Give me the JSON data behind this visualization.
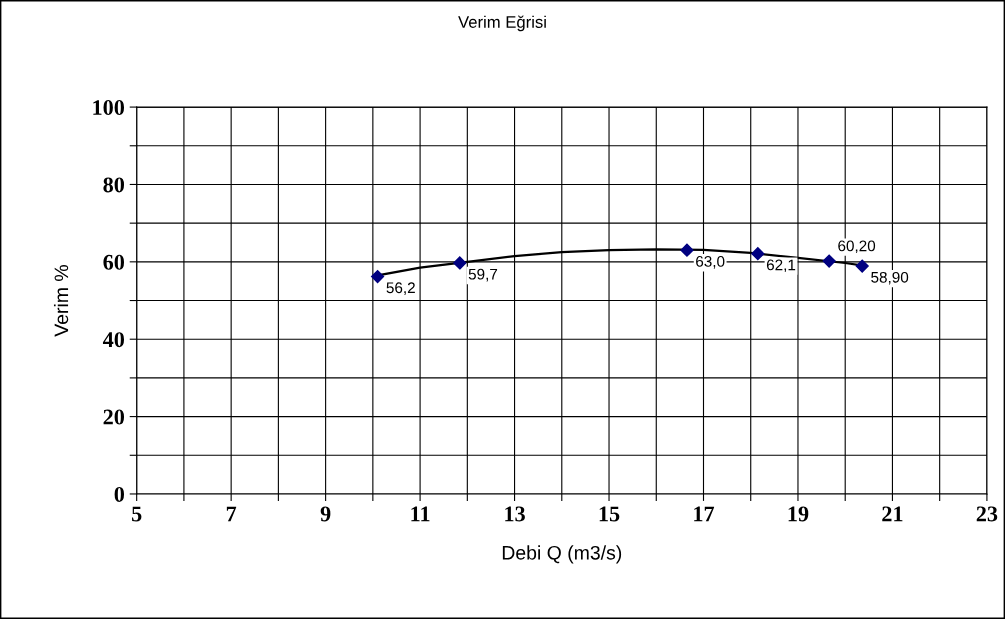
{
  "chart_data": {
    "type": "scatter",
    "title": "Verim Eğrisi",
    "xlabel": "Debi Q (m3/s)",
    "ylabel": "Verim %",
    "xlim": [
      5,
      23
    ],
    "ylim": [
      0,
      100
    ],
    "xticks": [
      5,
      {
        "value": 6,
        "label": null
      },
      7,
      {
        "value": 8,
        "label": null
      },
      9,
      {
        "value": 10,
        "label": null
      },
      11,
      {
        "value": 12,
        "label": null
      },
      13,
      {
        "value": 14,
        "label": null
      },
      15,
      {
        "value": 16,
        "label": null
      },
      17,
      {
        "value": 18,
        "label": null
      },
      19,
      {
        "value": 20,
        "label": null
      },
      21,
      {
        "value": 22,
        "label": null
      },
      23
    ],
    "yticks": [
      0,
      {
        "value": 10,
        "label": null
      },
      20,
      {
        "value": 30,
        "label": null
      },
      40,
      {
        "value": 50,
        "label": null
      },
      60,
      {
        "value": 70,
        "label": null
      },
      80,
      {
        "value": 90,
        "label": null
      },
      100
    ],
    "grid": true,
    "series": [
      {
        "type": "line",
        "marker": "none",
        "color": "#000000",
        "x": [
          10.1,
          11,
          12,
          13,
          14,
          15,
          16,
          17,
          18,
          19,
          20,
          20.4
        ],
        "values": [
          56.5,
          58.5,
          60.0,
          61.5,
          62.5,
          63.0,
          63.2,
          63.1,
          62.3,
          61.0,
          59.7,
          59.0
        ]
      },
      {
        "marker": "diamond",
        "color": "#000080",
        "x": [
          10.1,
          11.84,
          16.65,
          18.15,
          19.66,
          20.36
        ],
        "values": [
          56.2,
          59.7,
          63.0,
          62.1,
          60.2,
          58.9
        ],
        "value_labels": [
          "56,2",
          "59,7",
          "63,0",
          "62,1",
          "60,20",
          "58,90"
        ]
      }
    ]
  }
}
